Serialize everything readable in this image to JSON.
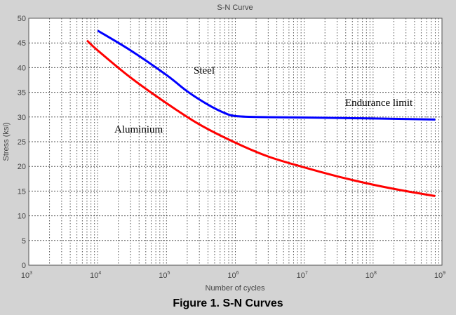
{
  "chart_data": {
    "type": "line",
    "title": "S-N Curve",
    "xlabel": "Number of cycles",
    "ylabel": "Stress (ksi)",
    "xscale": "log",
    "xlim": [
      1000,
      1000000000
    ],
    "ylim": [
      0,
      50
    ],
    "xticks": [
      {
        "base": "10",
        "exp": "3"
      },
      {
        "base": "10",
        "exp": "4"
      },
      {
        "base": "10",
        "exp": "5"
      },
      {
        "base": "10",
        "exp": "6"
      },
      {
        "base": "10",
        "exp": "7"
      },
      {
        "base": "10",
        "exp": "8"
      },
      {
        "base": "10",
        "exp": "9"
      }
    ],
    "yticks": [
      "0",
      "5",
      "10",
      "15",
      "20",
      "25",
      "30",
      "35",
      "40",
      "45",
      "50"
    ],
    "grid": true,
    "series": [
      {
        "name": "Steel",
        "color": "#0000ff",
        "x": [
          10000,
          30000,
          100000,
          200000,
          400000,
          700000,
          1000000,
          2000000,
          10000000,
          100000000,
          800000000
        ],
        "y": [
          47.5,
          43.5,
          38.5,
          35.2,
          32.5,
          30.8,
          30.2,
          30.0,
          29.9,
          29.7,
          29.5
        ]
      },
      {
        "name": "Aluminium",
        "color": "#ff0000",
        "x": [
          7000,
          10000,
          30000,
          100000,
          300000,
          1000000,
          3000000,
          10000000,
          30000000,
          100000000,
          300000000,
          800000000
        ],
        "y": [
          45.5,
          43.5,
          38.0,
          32.8,
          28.5,
          24.8,
          22.0,
          19.8,
          18.0,
          16.3,
          15.0,
          14.0
        ]
      }
    ],
    "annotations": [
      "Steel",
      "Endurance limit",
      "Aluminium"
    ]
  },
  "caption": "Figure 1.  S-N Curves"
}
